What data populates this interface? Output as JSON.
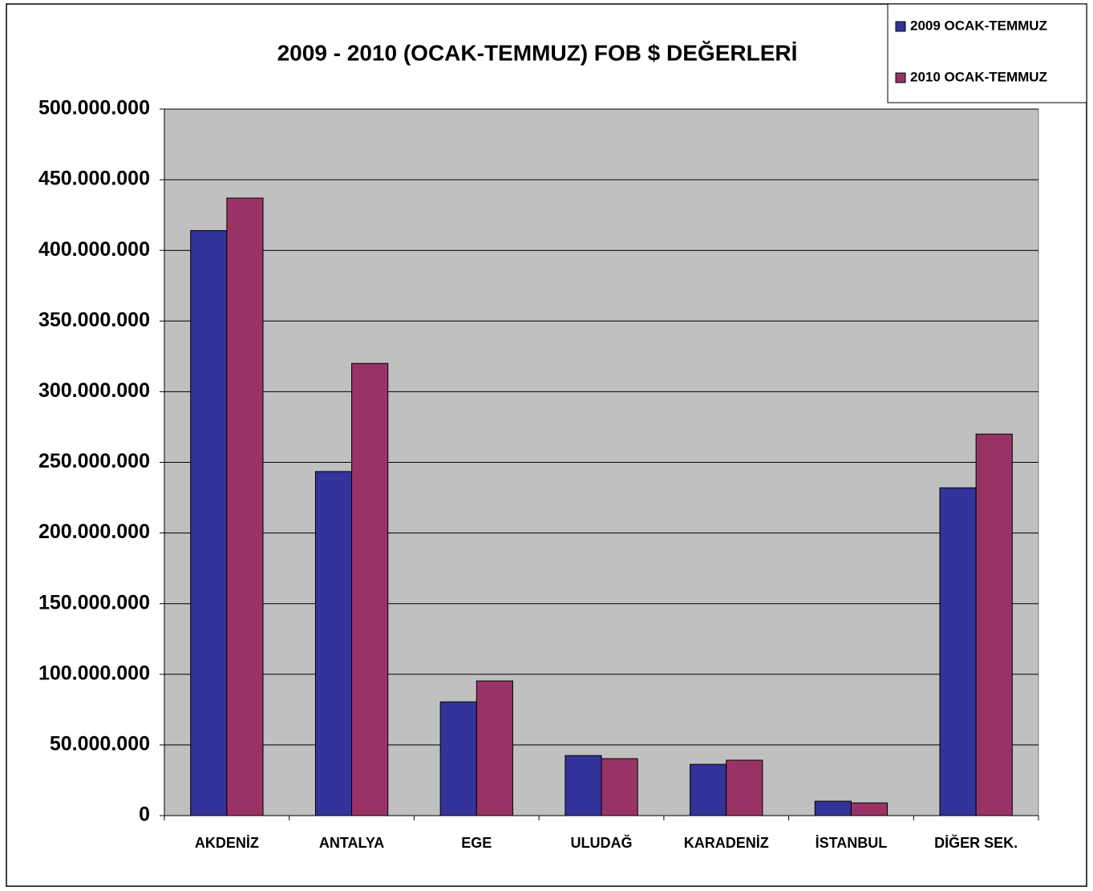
{
  "chart_data": {
    "type": "bar",
    "title": "2009 - 2010 (OCAK-TEMMUZ) FOB $ DEĞERLERİ",
    "categories": [
      "AKDENİZ",
      "ANTALYA",
      "EGE",
      "ULUDAĞ",
      "KARADENİZ",
      "İSTANBUL",
      "DİĞER SEK."
    ],
    "series": [
      {
        "name": "2009 OCAK-TEMMUZ",
        "color": "#333399",
        "values": [
          414000000,
          243500000,
          80500000,
          42500000,
          36300000,
          10200000,
          232000000
        ]
      },
      {
        "name": "2010 OCAK-TEMMUZ",
        "color": "#993366",
        "values": [
          437000000,
          320000000,
          95300000,
          40300000,
          39200000,
          9000000,
          270000000
        ]
      }
    ],
    "ylim": [
      0,
      500000000
    ],
    "yticks": [
      0,
      {
        "value": 50000000,
        "label": "50.000.000"
      },
      {
        "value": 100000000,
        "label": "100.000.000"
      },
      {
        "value": 150000000,
        "label": "150.000.000"
      },
      {
        "value": 200000000,
        "label": "200.000.000"
      },
      {
        "value": 250000000,
        "label": "250.000.000"
      },
      {
        "value": 300000000,
        "label": "300.000.000"
      },
      {
        "value": 350000000,
        "label": "350.000.000"
      },
      {
        "value": 400000000,
        "label": "400.000.000"
      },
      {
        "value": 450000000,
        "label": "450.000.000"
      },
      {
        "value": 500000000,
        "label": "500.000.000"
      }
    ],
    "grid": true,
    "legend": "top-right"
  }
}
